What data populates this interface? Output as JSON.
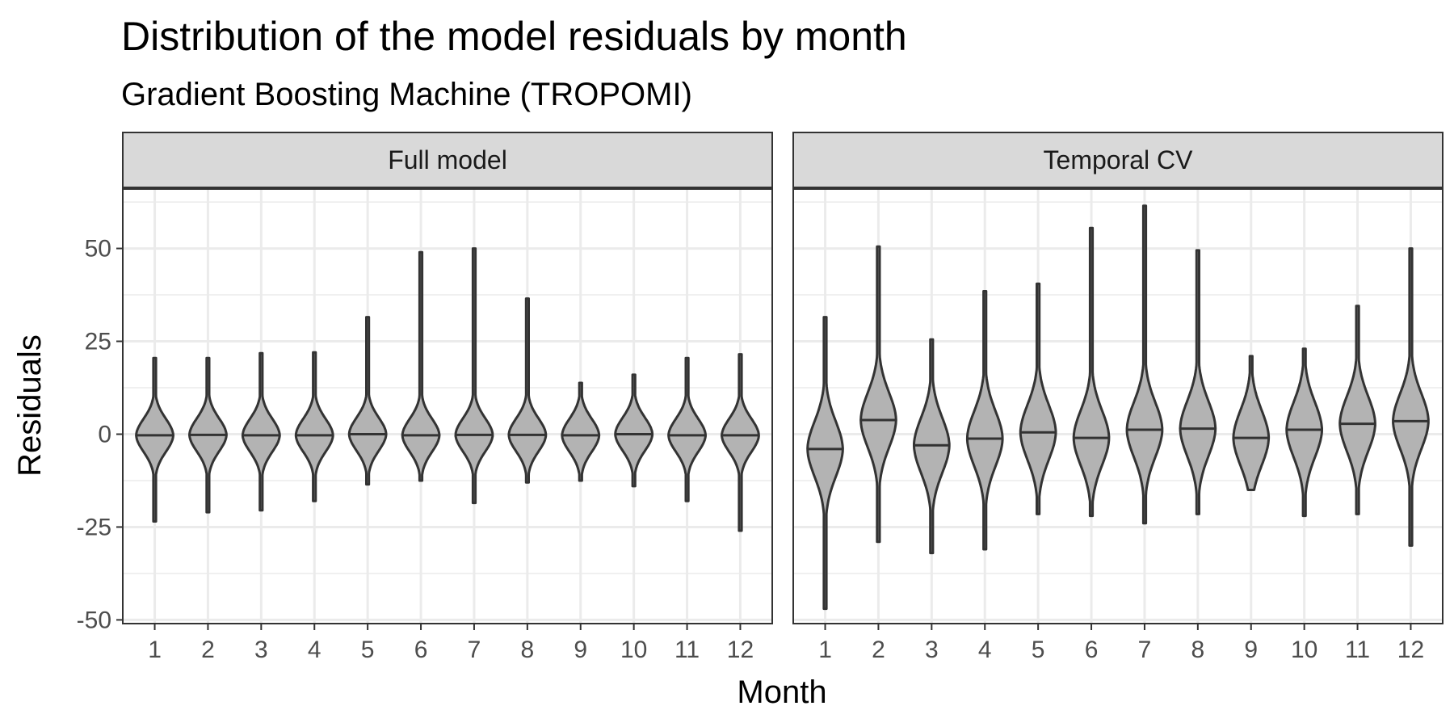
{
  "chart_data": {
    "type": "violin",
    "title": "Distribution of the model residuals by month",
    "subtitle": "Gradient Boosting Machine (TROPOMI)",
    "xlabel": "Month",
    "ylabel": "Residuals",
    "categories": [
      "1",
      "2",
      "3",
      "4",
      "5",
      "6",
      "7",
      "8",
      "9",
      "10",
      "11",
      "12"
    ],
    "ylim": [
      -51,
      66
    ],
    "yticks": [
      -50,
      -25,
      0,
      25,
      50
    ],
    "grid": true,
    "colors": {
      "fill": "#b3b3b3",
      "outline": "#333333",
      "strip": "#d9d9d9"
    },
    "panels": [
      {
        "name": "Full model",
        "median": [
          -0.3,
          -0.2,
          -0.3,
          -0.3,
          0,
          -0.3,
          -0.2,
          -0.2,
          -0.3,
          0,
          -0.3,
          -0.3
        ],
        "min": [
          -23.5,
          -21,
          -20.5,
          -18,
          -13.5,
          -12.5,
          -18.5,
          -13,
          -12.5,
          -14,
          -18,
          -26
        ],
        "max": [
          20.5,
          20.5,
          21.8,
          22,
          31.5,
          49,
          50,
          36.5,
          13.8,
          16,
          20.5,
          21.5
        ]
      },
      {
        "name": "Temporal CV",
        "median": [
          -4,
          3.8,
          -3,
          -1.2,
          0.5,
          -1,
          1.2,
          1.5,
          -1,
          1.2,
          2.8,
          3.5
        ],
        "min": [
          -47,
          -29,
          -32,
          -31,
          -21.5,
          -22,
          -24,
          -21.5,
          -15,
          -22,
          -21.5,
          -30
        ],
        "max": [
          31.5,
          50.5,
          25.5,
          38.5,
          40.5,
          55.5,
          61.5,
          49.5,
          21,
          23,
          34.5,
          50
        ]
      }
    ]
  }
}
